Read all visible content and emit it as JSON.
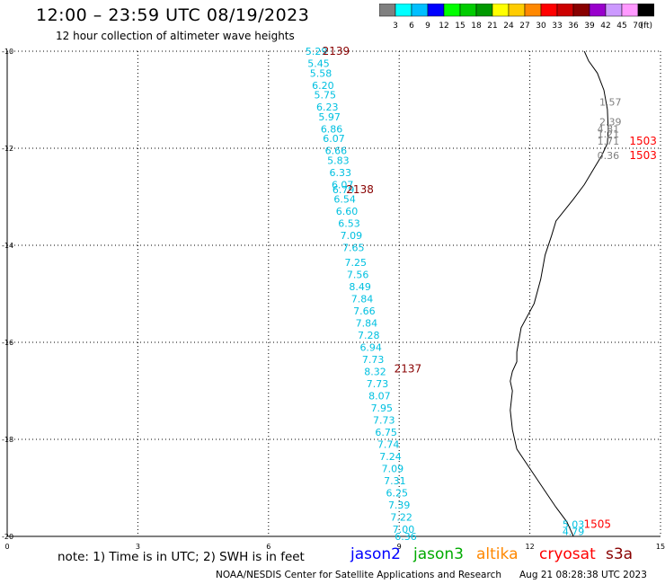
{
  "header": {
    "title": "12:00 – 23:59 UTC 08/19/2023",
    "subtitle": "12 hour collection of altimeter wave heights"
  },
  "color_scale": {
    "unit_label": "(ft)",
    "labels": [
      "3",
      "6",
      "9",
      "12",
      "15",
      "18",
      "21",
      "24",
      "27",
      "30",
      "33",
      "36",
      "39",
      "42",
      "45",
      "70"
    ],
    "colors": [
      "#808080",
      "#00ffff",
      "#00bfff",
      "#0000ff",
      "#00ff00",
      "#00cc00",
      "#009900",
      "#ffff00",
      "#ffcc00",
      "#ff8800",
      "#ff0000",
      "#cc0000",
      "#880000",
      "#9900cc",
      "#cc99ff",
      "#ff99ff",
      "#000000"
    ]
  },
  "footer": {
    "note": "note:  1) Time is in UTC;  2) SWH is in feet",
    "satellites": [
      {
        "name": "jason2",
        "color": "#0000ff"
      },
      {
        "name": "jason3",
        "color": "#00aa00"
      },
      {
        "name": "altika",
        "color": "#ff8800"
      },
      {
        "name": "cryosat",
        "color": "#ff0000"
      },
      {
        "name": "s3a",
        "color": "#880000"
      }
    ],
    "credit": "NOAA/NESDIS Center for Satellite Applications and Research",
    "timestamp": "Aug 21 08:28:38 UTC 2023"
  },
  "chart_data": {
    "type": "scatter",
    "title": "12:00 – 23:59 UTC 08/19/2023",
    "xlim": [
      0,
      15
    ],
    "ylim": [
      -20,
      -10
    ],
    "x_ticks": [
      "0",
      "3",
      "6",
      "9",
      "12",
      "15"
    ],
    "y_ticks": [
      "-10",
      "-12",
      "-14",
      "-16",
      "-18",
      "-20"
    ],
    "grid": true,
    "series": [
      {
        "name": "cryosat",
        "color": "#00c0e0",
        "points": [
          {
            "x": 7.1,
            "y": -10.0,
            "label": "5.29"
          },
          {
            "x": 7.15,
            "y": -10.25,
            "label": "5.45"
          },
          {
            "x": 7.2,
            "y": -10.45,
            "label": "5.58"
          },
          {
            "x": 7.25,
            "y": -10.7,
            "label": "6.20"
          },
          {
            "x": 7.3,
            "y": -10.9,
            "label": "5.75"
          },
          {
            "x": 7.35,
            "y": -11.15,
            "label": "6.23"
          },
          {
            "x": 7.4,
            "y": -11.35,
            "label": "5.97"
          },
          {
            "x": 7.45,
            "y": -11.6,
            "label": "6.86"
          },
          {
            "x": 7.5,
            "y": -11.8,
            "label": "6.07"
          },
          {
            "x": 7.55,
            "y": -12.05,
            "label": "6.66"
          },
          {
            "x": 7.6,
            "y": -12.25,
            "label": "5.83"
          },
          {
            "x": 7.65,
            "y": -12.5,
            "label": "6.33"
          },
          {
            "x": 7.7,
            "y": -12.75,
            "label": "6.07"
          },
          {
            "x": 7.72,
            "y": -12.85,
            "label": "6.79"
          },
          {
            "x": 7.75,
            "y": -13.05,
            "label": "6.54"
          },
          {
            "x": 7.8,
            "y": -13.3,
            "label": "6.60"
          },
          {
            "x": 7.85,
            "y": -13.55,
            "label": "6.53"
          },
          {
            "x": 7.9,
            "y": -13.8,
            "label": "7.09"
          },
          {
            "x": 7.95,
            "y": -14.05,
            "label": "7.65"
          },
          {
            "x": 8.0,
            "y": -14.35,
            "label": "7.25"
          },
          {
            "x": 8.05,
            "y": -14.6,
            "label": "7.56"
          },
          {
            "x": 8.1,
            "y": -14.85,
            "label": "8.49"
          },
          {
            "x": 8.15,
            "y": -15.1,
            "label": "7.84"
          },
          {
            "x": 8.2,
            "y": -15.35,
            "label": "7.66"
          },
          {
            "x": 8.25,
            "y": -15.6,
            "label": "7.84"
          },
          {
            "x": 8.3,
            "y": -15.85,
            "label": "7.28"
          },
          {
            "x": 8.35,
            "y": -16.1,
            "label": "6.94"
          },
          {
            "x": 8.4,
            "y": -16.35,
            "label": "7.73"
          },
          {
            "x": 8.45,
            "y": -16.6,
            "label": "8.32"
          },
          {
            "x": 8.5,
            "y": -16.85,
            "label": "7.73"
          },
          {
            "x": 8.55,
            "y": -17.1,
            "label": "8.07"
          },
          {
            "x": 8.6,
            "y": -17.35,
            "label": "7.95"
          },
          {
            "x": 8.65,
            "y": -17.6,
            "label": "7.73"
          },
          {
            "x": 8.7,
            "y": -17.85,
            "label": "6.75"
          },
          {
            "x": 8.75,
            "y": -18.1,
            "label": "7.74"
          },
          {
            "x": 8.8,
            "y": -18.35,
            "label": "7.24"
          },
          {
            "x": 8.85,
            "y": -18.6,
            "label": "7.09"
          },
          {
            "x": 8.9,
            "y": -18.85,
            "label": "7.31"
          },
          {
            "x": 8.95,
            "y": -19.1,
            "label": "6.25"
          },
          {
            "x": 9.0,
            "y": -19.35,
            "label": "7.39"
          },
          {
            "x": 9.05,
            "y": -19.6,
            "label": "7.22"
          },
          {
            "x": 9.1,
            "y": -19.85,
            "label": "7.00"
          },
          {
            "x": 9.15,
            "y": -20.0,
            "label": "6.36"
          }
        ]
      },
      {
        "name": "grey_near_coast",
        "color": "#808080",
        "points": [
          {
            "x": 13.85,
            "y": -11.05,
            "label": "1.57"
          },
          {
            "x": 13.85,
            "y": -11.45,
            "label": "2.39"
          },
          {
            "x": 13.8,
            "y": -11.6,
            "label": "4.81"
          },
          {
            "x": 13.8,
            "y": -11.7,
            "label": "1.21"
          },
          {
            "x": 13.8,
            "y": -11.85,
            "label": "1.71"
          },
          {
            "x": 13.8,
            "y": -12.15,
            "label": "0.36"
          }
        ]
      },
      {
        "name": "cryosat_south",
        "color": "#00c0e0",
        "points": [
          {
            "x": 13.0,
            "y": -19.75,
            "label": "5.03"
          },
          {
            "x": 13.0,
            "y": -19.9,
            "label": "4.79"
          }
        ]
      }
    ],
    "time_labels": [
      {
        "x": 7.55,
        "y": -10.0,
        "label": "2139",
        "color": "#880000"
      },
      {
        "x": 8.1,
        "y": -12.85,
        "label": "2138",
        "color": "#880000"
      },
      {
        "x": 9.2,
        "y": -16.55,
        "label": "2137",
        "color": "#880000"
      },
      {
        "x": 14.6,
        "y": -11.85,
        "label": "1503",
        "color": "#ff0000"
      },
      {
        "x": 14.6,
        "y": -12.15,
        "label": "1503",
        "color": "#ff0000"
      },
      {
        "x": 13.55,
        "y": -19.75,
        "label": "1505",
        "color": "#ff0000"
      }
    ],
    "coastline": [
      [
        13.25,
        -10.0
      ],
      [
        13.35,
        -10.2
      ],
      [
        13.55,
        -10.45
      ],
      [
        13.7,
        -10.8
      ],
      [
        13.78,
        -11.2
      ],
      [
        13.8,
        -11.6
      ],
      [
        13.78,
        -11.9
      ],
      [
        13.65,
        -12.15
      ],
      [
        13.45,
        -12.45
      ],
      [
        13.25,
        -12.75
      ],
      [
        13.0,
        -13.05
      ],
      [
        12.6,
        -13.5
      ],
      [
        12.5,
        -13.8
      ],
      [
        12.35,
        -14.2
      ],
      [
        12.25,
        -14.7
      ],
      [
        12.1,
        -15.2
      ],
      [
        11.8,
        -15.7
      ],
      [
        11.7,
        -16.2
      ],
      [
        11.7,
        -16.4
      ],
      [
        11.6,
        -16.6
      ],
      [
        11.55,
        -16.8
      ],
      [
        11.6,
        -17.0
      ],
      [
        11.55,
        -17.4
      ],
      [
        11.6,
        -17.8
      ],
      [
        11.7,
        -18.2
      ],
      [
        12.0,
        -18.6
      ],
      [
        12.3,
        -19.0
      ],
      [
        12.6,
        -19.4
      ],
      [
        12.85,
        -19.7
      ],
      [
        13.0,
        -20.0
      ]
    ]
  }
}
